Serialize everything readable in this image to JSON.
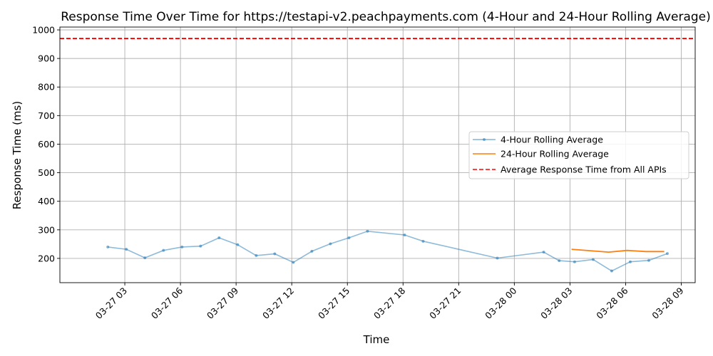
{
  "chart_data": {
    "type": "line",
    "title": "Response Time Over Time for https://testapi-v2.peachpayments.com (4-Hour and 24-Hour Rolling Average)",
    "xlabel": "Time",
    "ylabel": "Response Time (ms)",
    "grid": true,
    "legend_position": "center-right",
    "xlim": [
      "2023-03-26T23:30",
      "2023-03-28T09:45"
    ],
    "ylim": [
      115,
      1010
    ],
    "x_ticks": [
      "2023-03-27T03:00",
      "2023-03-27T06:00",
      "2023-03-27T09:00",
      "2023-03-27T12:00",
      "2023-03-27T15:00",
      "2023-03-27T18:00",
      "2023-03-27T21:00",
      "2023-03-28T00:00",
      "2023-03-28T03:00",
      "2023-03-28T06:00",
      "2023-03-28T09:00"
    ],
    "x_tick_labels": [
      "03-27 03",
      "03-27 06",
      "03-27 09",
      "03-27 12",
      "03-27 15",
      "03-27 18",
      "03-27 21",
      "03-28 00",
      "03-28 03",
      "03-28 06",
      "03-28 09"
    ],
    "y_ticks": [
      200,
      300,
      400,
      500,
      600,
      700,
      800,
      900,
      1000
    ],
    "y_tick_labels": [
      "200",
      "300",
      "400",
      "500",
      "600",
      "700",
      "800",
      "900",
      "1000"
    ],
    "series": [
      {
        "name": "4-Hour Rolling Average",
        "color": "#1f77b4",
        "style": "line-markers",
        "x": [
          "2023-03-27T02:05",
          "2023-03-27T03:05",
          "2023-03-27T04:05",
          "2023-03-27T05:05",
          "2023-03-27T06:05",
          "2023-03-27T07:05",
          "2023-03-27T08:05",
          "2023-03-27T09:05",
          "2023-03-27T10:05",
          "2023-03-27T11:05",
          "2023-03-27T12:05",
          "2023-03-27T13:05",
          "2023-03-27T14:05",
          "2023-03-27T15:05",
          "2023-03-27T16:05",
          "2023-03-27T18:05",
          "2023-03-27T19:05",
          "2023-03-27T23:05",
          "2023-03-28T01:35",
          "2023-03-28T02:25",
          "2023-03-28T03:15",
          "2023-03-28T04:15",
          "2023-03-28T05:15",
          "2023-03-28T06:15",
          "2023-03-28T07:15",
          "2023-03-28T08:15"
        ],
        "values": [
          240,
          232,
          202,
          228,
          240,
          243,
          272,
          248,
          210,
          216,
          186,
          225,
          251,
          272,
          295,
          282,
          260,
          201,
          222,
          192,
          188,
          196,
          156,
          188,
          193,
          217
        ]
      },
      {
        "name": "24-Hour Rolling Average",
        "color": "#ff7f0e",
        "style": "line",
        "x": [
          "2023-03-28T03:05",
          "2023-03-28T04:05",
          "2023-03-28T05:05",
          "2023-03-28T06:05",
          "2023-03-28T07:05",
          "2023-03-28T08:05"
        ],
        "values": [
          232,
          227,
          222,
          228,
          224,
          224
        ]
      },
      {
        "name": "Average Response Time from All APIs",
        "color": "#ff0000",
        "style": "hline-dashed",
        "value": 970
      }
    ]
  }
}
